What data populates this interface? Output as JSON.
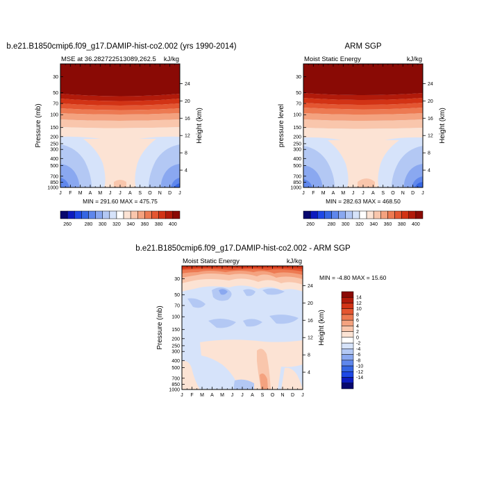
{
  "palette": [
    "#08086e",
    "#0d1cbf",
    "#1e48e6",
    "#3666e3",
    "#5f87ec",
    "#8aa8f0",
    "#b3c8f4",
    "#d6e3fa",
    "#ffffff",
    "#fce3d4",
    "#f9c6ac",
    "#f4a27f",
    "#ed7a52",
    "#e45631",
    "#d23315",
    "#b11a0a",
    "#8a0a05"
  ],
  "chart_data": [
    {
      "type": "heatmap",
      "id": "top-left",
      "title": "b.e21.B1850cmip6.f09_g17.DAMIP-hist-co2.002 (yrs 1990-2014)",
      "subtitle_left": "MSE at 36.282722513089,262.5",
      "subtitle_right": "kJ/kg",
      "ylabel": "Pressure (mb)",
      "ylabel_right": "Height (km)",
      "xticks": [
        "J",
        "F",
        "M",
        "A",
        "M",
        "J",
        "J",
        "A",
        "S",
        "O",
        "N",
        "D",
        "J"
      ],
      "yticks": [
        30,
        50,
        70,
        100,
        150,
        200,
        250,
        300,
        400,
        500,
        700,
        850,
        1000
      ],
      "ylim": [
        1000,
        20
      ],
      "right_ticks": [
        4,
        8,
        12,
        16,
        20,
        24
      ],
      "stats": "MIN = 291.60 MAX = 475.75",
      "colorbar": {
        "orientation": "horizontal",
        "ticks": [
          260,
          280,
          300,
          320,
          340,
          360,
          380,
          400
        ],
        "levels": [
          255,
          260,
          265,
          270,
          280,
          290,
          300,
          310,
          320,
          330,
          340,
          350,
          360,
          370,
          380,
          390,
          400,
          405
        ]
      }
    },
    {
      "type": "heatmap",
      "id": "top-right",
      "title": "ARM SGP",
      "subtitle_left": "Moist Static Energy",
      "subtitle_right": "kJ/kg",
      "ylabel": "pressure level",
      "ylabel_right": "Height (km)",
      "xticks": [
        "J",
        "F",
        "M",
        "A",
        "M",
        "J",
        "J",
        "A",
        "S",
        "O",
        "N",
        "D",
        "J"
      ],
      "yticks": [
        30,
        50,
        70,
        100,
        150,
        200,
        250,
        300,
        400,
        500,
        700,
        850,
        1000
      ],
      "ylim": [
        1000,
        20
      ],
      "right_ticks": [
        4,
        8,
        12,
        16,
        20,
        24
      ],
      "stats": "MIN = 282.63 MAX = 468.50",
      "colorbar": {
        "orientation": "horizontal",
        "ticks": [
          260,
          280,
          300,
          320,
          340,
          360,
          380,
          400
        ],
        "levels": [
          255,
          260,
          265,
          270,
          280,
          290,
          300,
          310,
          320,
          330,
          340,
          350,
          360,
          370,
          380,
          390,
          400,
          405
        ]
      }
    },
    {
      "type": "heatmap",
      "id": "difference",
      "title": "b.e21.B1850cmip6.f09_g17.DAMIP-hist-co2.002 - ARM SGP",
      "subtitle_left": "Moist Static Energy",
      "subtitle_right": "kJ/kg",
      "ylabel": "Pressure (mb)",
      "ylabel_right": "Height (km)",
      "xticks": [
        "J",
        "F",
        "M",
        "A",
        "M",
        "J",
        "J",
        "A",
        "S",
        "O",
        "N",
        "D",
        "J"
      ],
      "yticks": [
        30,
        50,
        70,
        100,
        150,
        200,
        250,
        300,
        400,
        500,
        700,
        850,
        1000
      ],
      "ylim": [
        1000,
        20
      ],
      "right_ticks": [
        4,
        8,
        12,
        16,
        20,
        24
      ],
      "stats": "MIN =  -4.80 MAX =  15.60",
      "colorbar": {
        "orientation": "vertical",
        "ticks": [
          14,
          12,
          10,
          8,
          6,
          4,
          2,
          0,
          -2,
          -4,
          -6,
          -8,
          -10,
          -12,
          -14
        ],
        "levels": [
          -15,
          -14,
          -12,
          -10,
          -8,
          -6,
          -4,
          -2,
          -1,
          1,
          2,
          4,
          6,
          8,
          10,
          12,
          14,
          15
        ]
      }
    }
  ]
}
